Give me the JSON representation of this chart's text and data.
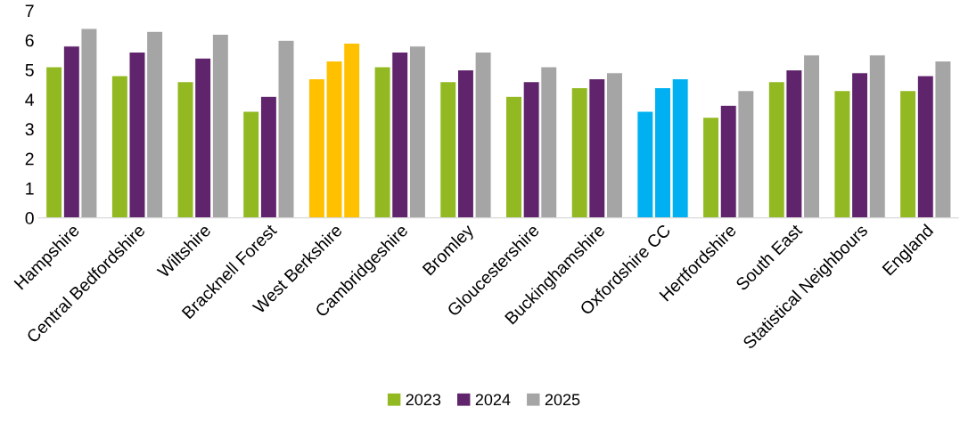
{
  "chart_data": {
    "type": "bar",
    "categories": [
      "Hampshire",
      "Central Bedfordshire",
      "Wiltshire",
      "Bracknell Forest",
      "West Berkshire",
      "Cambridgeshire",
      "Bromley",
      "Gloucestershire",
      "Buckinghamshire",
      "Oxfordshire CC",
      "Hertfordshire",
      "South East",
      "Statistical Neighbours",
      "England"
    ],
    "series": [
      {
        "name": "2023",
        "color": "#92b921",
        "colors": [
          "#92b921",
          "#92b921",
          "#92b921",
          "#92b921",
          "#ffc000",
          "#92b921",
          "#92b921",
          "#92b921",
          "#92b921",
          "#00b0f0",
          "#92b921",
          "#92b921",
          "#92b921",
          "#92b921"
        ],
        "values": [
          5.1,
          4.8,
          4.6,
          3.6,
          4.7,
          5.1,
          4.6,
          4.1,
          4.4,
          3.6,
          3.4,
          4.6,
          4.3,
          4.3
        ]
      },
      {
        "name": "2024",
        "color": "#5f246b",
        "colors": [
          "#5f246b",
          "#5f246b",
          "#5f246b",
          "#5f246b",
          "#ffc000",
          "#5f246b",
          "#5f246b",
          "#5f246b",
          "#5f246b",
          "#00b0f0",
          "#5f246b",
          "#5f246b",
          "#5f246b",
          "#5f246b"
        ],
        "values": [
          5.8,
          5.6,
          5.4,
          4.1,
          5.3,
          5.6,
          5.0,
          4.6,
          4.7,
          4.4,
          3.8,
          5.0,
          4.9,
          4.8
        ]
      },
      {
        "name": "2025",
        "color": "#a5a5a5",
        "colors": [
          "#a5a5a5",
          "#a5a5a5",
          "#a5a5a5",
          "#a5a5a5",
          "#ffc000",
          "#a5a5a5",
          "#a5a5a5",
          "#a5a5a5",
          "#a5a5a5",
          "#00b0f0",
          "#a5a5a5",
          "#a5a5a5",
          "#a5a5a5",
          "#a5a5a5"
        ],
        "values": [
          6.4,
          6.3,
          6.2,
          6.0,
          5.9,
          5.8,
          5.6,
          5.1,
          4.9,
          4.7,
          4.3,
          5.5,
          5.5,
          5.3
        ]
      }
    ],
    "ylim": [
      0,
      7
    ],
    "yticks": [
      0,
      1,
      2,
      3,
      4,
      5,
      6,
      7
    ],
    "grid": false,
    "legend": "bottom"
  }
}
